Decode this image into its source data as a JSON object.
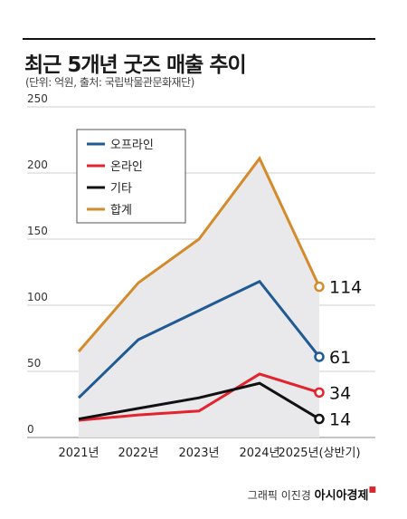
{
  "header": {
    "title": "최근 5개년 굿즈 매출 추이",
    "subtitle": "(단위: 억원, 출처: 국립박물관문화재단)"
  },
  "footer": {
    "credit": "그래픽 이진경",
    "brand": "아시아경제",
    "brand_mark": "ㅁ"
  },
  "chart_data": {
    "type": "line",
    "categories": [
      "2021년",
      "2022년",
      "2023년",
      "2024년",
      "2025년(상반기)"
    ],
    "ylim": [
      0,
      250
    ],
    "yticks": [
      0,
      50,
      100,
      150,
      200,
      250
    ],
    "grid": true,
    "legend": "top-left",
    "series": [
      {
        "name": "오프라인",
        "color": "#1f5a93",
        "values": [
          30,
          74,
          96,
          118,
          61
        ]
      },
      {
        "name": "온라인",
        "color": "#e3232d",
        "values": [
          13,
          17,
          20,
          48,
          34
        ]
      },
      {
        "name": "기타",
        "color": "#111111",
        "values": [
          14,
          22,
          30,
          41,
          14
        ]
      },
      {
        "name": "합계",
        "color": "#d38b2c",
        "values": [
          65,
          117,
          150,
          211,
          114
        ]
      }
    ],
    "end_labels": [
      {
        "series": "합계",
        "value": "114"
      },
      {
        "series": "오프라인",
        "value": "61"
      },
      {
        "series": "온라인",
        "value": "34"
      },
      {
        "series": "기타",
        "value": "14"
      }
    ]
  }
}
